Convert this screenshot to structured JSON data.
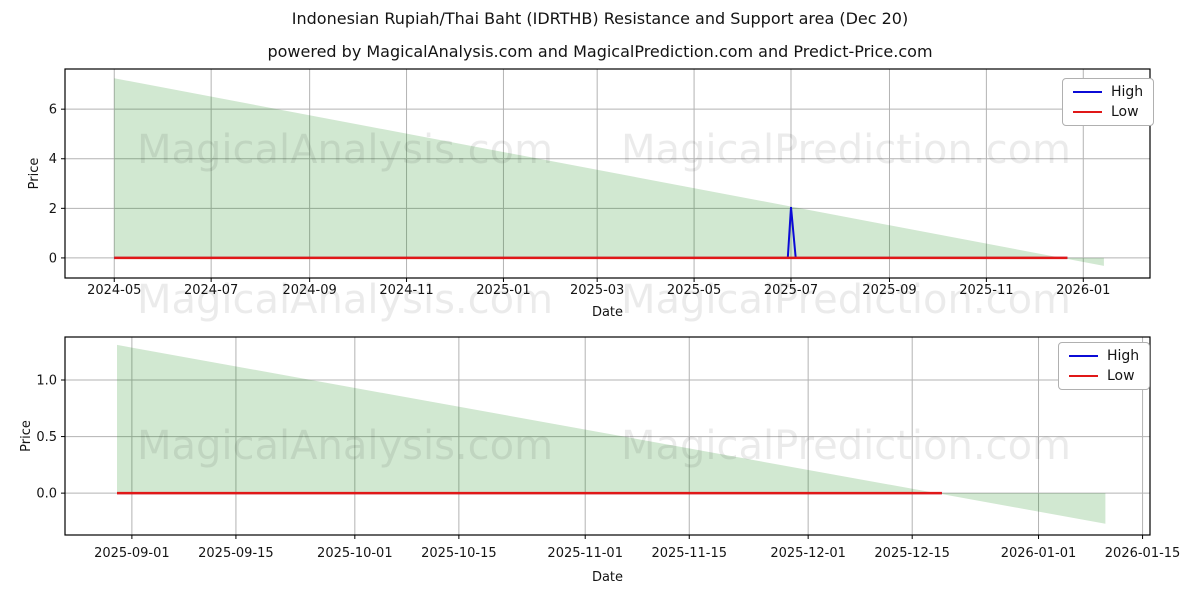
{
  "figure": {
    "title": "Indonesian Rupiah/Thai Baht (IDRTHB) Resistance and Support area (Dec 20)",
    "subtitle": "powered by MagicalAnalysis.com and MagicalPrediction.com and Predict-Price.com"
  },
  "watermarks": {
    "left": "MagicalAnalysis.com",
    "right": "MagicalPrediction.com"
  },
  "legend": {
    "items": [
      {
        "label": "High",
        "color": "#0b0bd6"
      },
      {
        "label": "Low",
        "color": "#e01818"
      }
    ]
  },
  "colors": {
    "grid": "#b3b3b3",
    "spine": "#000000",
    "area": "#008000",
    "area_opacity": 0.18,
    "high": "#0b0bd6",
    "low": "#e01818",
    "watermark": "rgba(0,0,0,0.08)"
  },
  "chart_data": [
    {
      "type": "area",
      "name": "main",
      "xlabel": "Date",
      "ylabel": "Price",
      "xlim": [
        "2024-03-31",
        "2026-02-12"
      ],
      "ylim": [
        -0.81,
        7.62
      ],
      "grid": true,
      "legend_position": "upper right",
      "x_ticks": [
        {
          "date": "2024-05-01",
          "label": "2024-05"
        },
        {
          "date": "2024-07-01",
          "label": "2024-07"
        },
        {
          "date": "2024-09-01",
          "label": "2024-09"
        },
        {
          "date": "2024-11-01",
          "label": "2024-11"
        },
        {
          "date": "2025-01-01",
          "label": "2025-01"
        },
        {
          "date": "2025-03-01",
          "label": "2025-03"
        },
        {
          "date": "2025-05-01",
          "label": "2025-05"
        },
        {
          "date": "2025-07-01",
          "label": "2025-07"
        },
        {
          "date": "2025-09-01",
          "label": "2025-09"
        },
        {
          "date": "2025-11-01",
          "label": "2025-11"
        },
        {
          "date": "2026-01-01",
          "label": "2026-01"
        }
      ],
      "y_ticks": [
        {
          "value": 0,
          "label": "0"
        },
        {
          "value": 2,
          "label": "2"
        },
        {
          "value": 4,
          "label": "4"
        },
        {
          "value": 6,
          "label": "6"
        }
      ],
      "area": {
        "description": "resistance-support wedge descending from 7.25 to below zero",
        "points": [
          [
            "2024-05-01",
            7.25
          ],
          [
            "2026-01-14",
            -0.32
          ],
          [
            "2026-01-14",
            0
          ],
          [
            "2024-05-01",
            0
          ]
        ]
      },
      "series": [
        {
          "name": "High",
          "color": "#0b0bd6",
          "width": 2,
          "points": [
            [
              "2024-05-01",
              0
            ],
            [
              "2025-06-29",
              0
            ],
            [
              "2025-07-01",
              2.05
            ],
            [
              "2025-07-04",
              0
            ],
            [
              "2025-12-22",
              0
            ]
          ]
        },
        {
          "name": "Low",
          "color": "#e01818",
          "width": 2.5,
          "points": [
            [
              "2024-05-01",
              0
            ],
            [
              "2025-12-22",
              0
            ]
          ]
        }
      ]
    },
    {
      "type": "area",
      "name": "zoomed",
      "xlabel": "Date",
      "ylabel": "Price",
      "xlim": [
        "2025-08-23",
        "2026-01-16"
      ],
      "ylim": [
        -0.37,
        1.38
      ],
      "grid": true,
      "legend_position": "upper right",
      "x_ticks": [
        {
          "date": "2025-09-01",
          "label": "2025-09-01"
        },
        {
          "date": "2025-09-15",
          "label": "2025-09-15"
        },
        {
          "date": "2025-10-01",
          "label": "2025-10-01"
        },
        {
          "date": "2025-10-15",
          "label": "2025-10-15"
        },
        {
          "date": "2025-11-01",
          "label": "2025-11-01"
        },
        {
          "date": "2025-11-15",
          "label": "2025-11-15"
        },
        {
          "date": "2025-12-01",
          "label": "2025-12-01"
        },
        {
          "date": "2025-12-15",
          "label": "2025-12-15"
        },
        {
          "date": "2026-01-01",
          "label": "2026-01-01"
        },
        {
          "date": "2026-01-15",
          "label": "2026-01-15"
        }
      ],
      "y_ticks": [
        {
          "value": 0,
          "label": "0.0"
        },
        {
          "value": 0.5,
          "label": "0.5"
        },
        {
          "value": 1,
          "label": "1.0"
        }
      ],
      "area": {
        "description": "resistance-support wedge descending from 1.31 to below zero",
        "points": [
          [
            "2025-08-30",
            1.31
          ],
          [
            "2026-01-10",
            -0.27
          ],
          [
            "2026-01-10",
            0
          ],
          [
            "2025-08-30",
            0
          ]
        ]
      },
      "series": [
        {
          "name": "High",
          "color": "#0b0bd6",
          "width": 2,
          "points": [
            [
              "2025-08-30",
              0
            ],
            [
              "2025-12-19",
              0
            ]
          ]
        },
        {
          "name": "Low",
          "color": "#e01818",
          "width": 2.5,
          "points": [
            [
              "2025-08-30",
              0
            ],
            [
              "2025-12-19",
              0
            ]
          ]
        }
      ]
    }
  ]
}
